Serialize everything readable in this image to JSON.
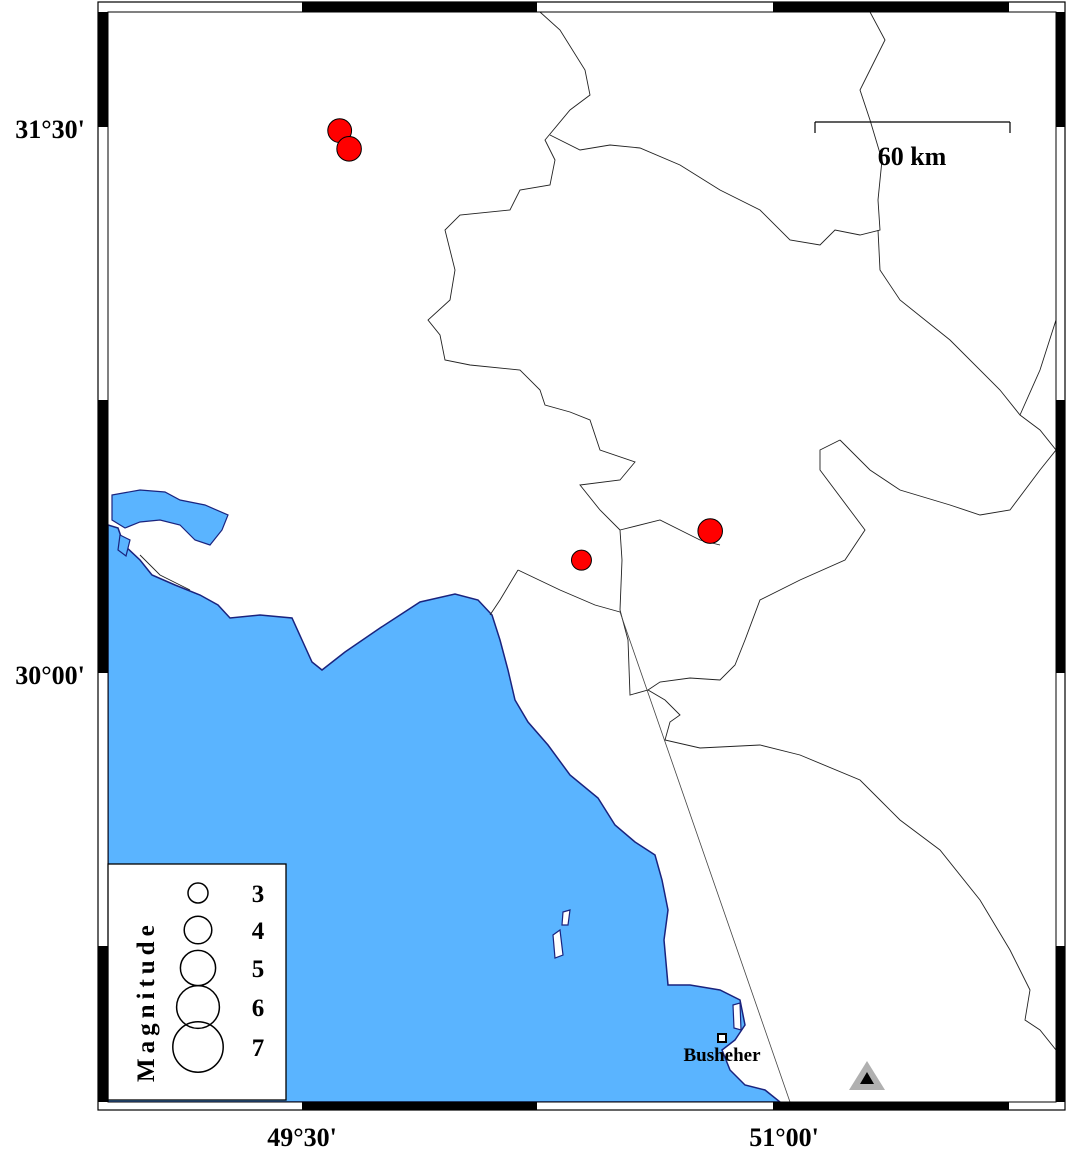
{
  "map": {
    "colors": {
      "sea": "#5ab4ff",
      "coast": "#1a237e",
      "event": "#ff0000",
      "station_outer": "#b0b0b0",
      "station_inner": "#000000"
    },
    "lat_labels": [
      "31°30'",
      "30°00'"
    ],
    "lon_labels": [
      "49°30'",
      "51°00'"
    ],
    "scale_bar": {
      "label": "60 km"
    },
    "city": {
      "name": "Busheher",
      "lon": 50.83,
      "lat": 28.97
    },
    "station": {
      "icon": "triangle-icon",
      "lon": 50.95,
      "lat": 28.86
    },
    "events": [
      {
        "lon": 49.62,
        "lat": 31.49,
        "mag": 3.5
      },
      {
        "lon": 49.65,
        "lat": 31.44,
        "mag": 3.6
      },
      {
        "lon": 50.39,
        "lat": 30.31,
        "mag": 3.0
      },
      {
        "lon": 50.8,
        "lat": 30.39,
        "mag": 3.6
      }
    ],
    "legend": {
      "title": "Magnitude",
      "items": [
        {
          "label": "3",
          "mag": 3
        },
        {
          "label": "4",
          "mag": 4
        },
        {
          "label": "5",
          "mag": 5
        },
        {
          "label": "6",
          "mag": 6
        },
        {
          "label": "7",
          "mag": 7
        }
      ]
    }
  }
}
